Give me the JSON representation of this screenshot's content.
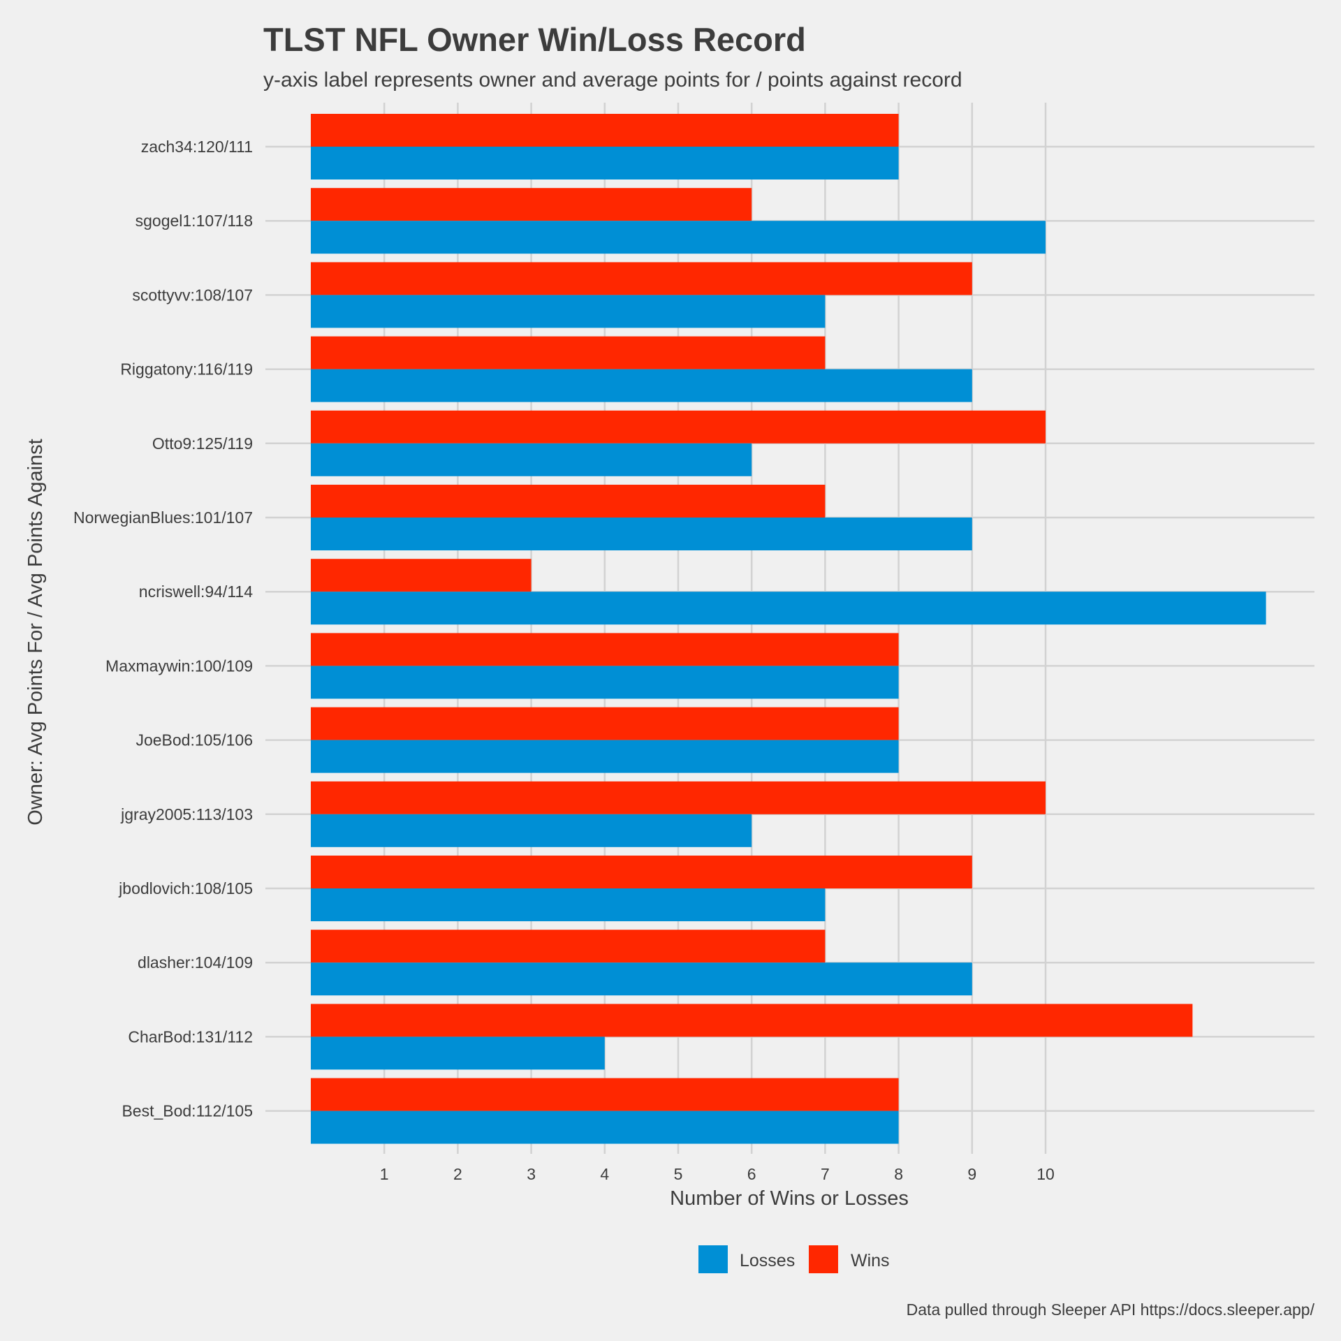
{
  "chart_data": {
    "type": "bar",
    "orientation": "horizontal",
    "title": "TLST NFL Owner Win/Loss Record",
    "subtitle": "y-axis label represents owner and average points for / points against record",
    "xlabel": "Number of Wins or Losses",
    "ylabel": "Owner: Avg Points For / Avg Points Against",
    "caption": "Data pulled through Sleeper API https://docs.sleeper.app/",
    "xlim": [
      0,
      13.6
    ],
    "x_ticks": [
      1,
      2,
      3,
      4,
      5,
      6,
      7,
      8,
      9,
      10
    ],
    "grid": true,
    "legend_position": "bottom",
    "categories": [
      "zach34:120/111",
      "sgogel1:107/118",
      "scottyvv:108/107",
      "Riggatony:116/119",
      "Otto9:125/119",
      "NorwegianBlues:101/107",
      "ncriswell:94/114",
      "Maxmaywin:100/109",
      "JoeBod:105/106",
      "jgray2005:113/103",
      "jbodlovich:108/105",
      "dlasher:104/109",
      "CharBod:131/112",
      "Best_Bod:112/105"
    ],
    "series": [
      {
        "name": "Losses",
        "color": "#008fd5",
        "values": [
          8,
          10,
          7,
          9,
          6,
          9,
          13,
          8,
          8,
          6,
          7,
          9,
          4,
          8
        ]
      },
      {
        "name": "Wins",
        "color": "#ff2700",
        "values": [
          8,
          6,
          9,
          7,
          10,
          7,
          3,
          8,
          8,
          10,
          9,
          7,
          12,
          8
        ]
      }
    ]
  }
}
